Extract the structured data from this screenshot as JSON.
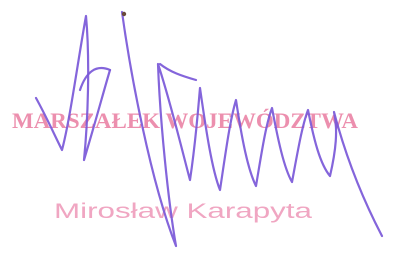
{
  "stamp": {
    "title": "MARSZAŁEK WOJEWÓDZTWA",
    "name": "Mirosław Karapyta"
  }
}
